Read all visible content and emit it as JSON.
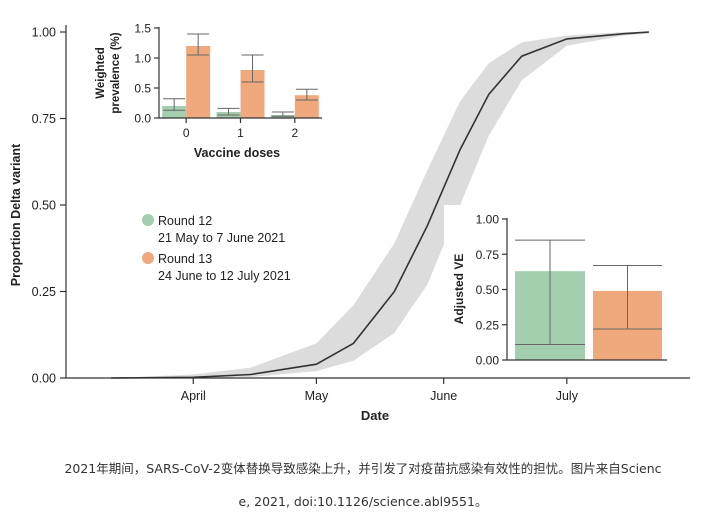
{
  "chart_data": [
    {
      "type": "area",
      "xlabel": "Date",
      "ylabel": "Proportion Delta variant",
      "x_ticks": [
        "April",
        "May",
        "June",
        "July"
      ],
      "x_range": [
        "2021-03-01",
        "2021-07-31"
      ],
      "y_ticks": [
        "0.00",
        "0.25",
        "0.50",
        "0.75",
        "1.00"
      ],
      "ylim": [
        0,
        1
      ],
      "curve": {
        "x": [
          "2021-03-12",
          "2021-04-01",
          "2021-04-15",
          "2021-05-01",
          "2021-05-10",
          "2021-05-20",
          "2021-05-28",
          "2021-06-05",
          "2021-06-12",
          "2021-06-20",
          "2021-07-01",
          "2021-07-15",
          "2021-07-21"
        ],
        "y": [
          0.0,
          0.002,
          0.01,
          0.04,
          0.1,
          0.25,
          0.44,
          0.66,
          0.82,
          0.93,
          0.98,
          0.995,
          1.0
        ],
        "ci_low": [
          0.0,
          0.0,
          0.003,
          0.02,
          0.05,
          0.13,
          0.27,
          0.5,
          0.7,
          0.86,
          0.96,
          0.99,
          0.995
        ],
        "ci_high": [
          0.0,
          0.01,
          0.03,
          0.1,
          0.21,
          0.39,
          0.6,
          0.8,
          0.91,
          0.97,
          0.99,
          1.0,
          1.0
        ]
      },
      "legend": [
        {
          "name": "Round 12",
          "dates": "21 May to 7 June 2021",
          "color": "#a3cfae"
        },
        {
          "name": "Round 13",
          "dates": "24 June to 12 July 2021",
          "color": "#f0a97d"
        }
      ],
      "band_color": "#dcdcdc",
      "line_color": "#333333"
    },
    {
      "type": "bar",
      "title": "",
      "xlabel": "Vaccine doses",
      "ylabel": "Weighted prevalence (%)",
      "ylabel_lines": [
        "Weighted",
        "prevalence (%)"
      ],
      "categories": [
        "0",
        "1",
        "2"
      ],
      "y_ticks": [
        "0.0",
        "0.5",
        "1.0",
        "1.5"
      ],
      "ylim": [
        0,
        1.5
      ],
      "series": [
        {
          "name": "Round 12",
          "values": [
            0.2,
            0.1,
            0.05
          ],
          "ci_low": [
            0.13,
            0.05,
            0.03
          ],
          "ci_high": [
            0.32,
            0.16,
            0.1
          ]
        },
        {
          "name": "Round 13",
          "values": [
            1.2,
            0.8,
            0.38
          ],
          "ci_low": [
            1.05,
            0.6,
            0.3
          ],
          "ci_high": [
            1.4,
            1.05,
            0.48
          ]
        }
      ]
    },
    {
      "type": "bar",
      "title": "",
      "ylabel": "Adjusted VE",
      "categories": [
        "Round 12",
        "Round 13"
      ],
      "y_ticks": [
        "0.00",
        "0.25",
        "0.50",
        "0.75",
        "1.00"
      ],
      "ylim": [
        0,
        1
      ],
      "values": [
        0.63,
        0.49
      ],
      "ci_low": [
        0.11,
        0.22
      ],
      "ci_high": [
        0.85,
        0.67
      ]
    }
  ],
  "caption": {
    "line1": "2021年期间，SARS-CoV-2变体替换导致感染上升，并引发了对疫苗抗感染有效性的担忧。图片来自Scienc",
    "line2": "e, 2021, doi:10.1126/science.abl9551。"
  }
}
